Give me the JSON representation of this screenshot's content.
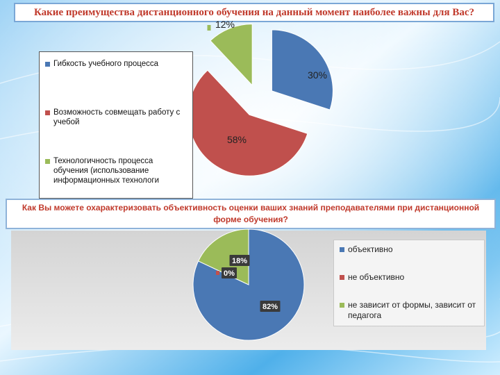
{
  "header": {
    "title": "Какие преимущества  дистанционного обучения на данный момент наиболее важны для Вас?"
  },
  "section2": {
    "title": "Как Вы можете охарактеризовать объективность оценки ваших знаний преподавателями при дистанционной форме обучения?"
  },
  "chart_data": [
    {
      "type": "pie",
      "title": "Какие преимущества  дистанционного обучения на данный момент наиболее важны для Вас?",
      "categories": [
        "Гибкость учебного процесса",
        "Возможность совмещать работу с учебой",
        "Технологичность процесса обучения (использование информационных технологи"
      ],
      "values": [
        30,
        58,
        12
      ],
      "labels": [
        "30%",
        "58%",
        "12%"
      ],
      "colors": [
        "#4a78b4",
        "#c0504d",
        "#9bbb59"
      ],
      "exploded": true,
      "legend_position": "left"
    },
    {
      "type": "pie",
      "title": "Как Вы можете охарактеризовать объективность оценки ваших знаний преподавателями при дистанционной форме обучения?",
      "categories": [
        "объективно",
        "не объективно",
        "не зависит от формы, зависит от педагога"
      ],
      "values": [
        82,
        0,
        18
      ],
      "labels": [
        "82%",
        "0%",
        "18%"
      ],
      "colors": [
        "#4a78b4",
        "#c0504d",
        "#9bbb59"
      ],
      "legend_position": "right"
    }
  ]
}
